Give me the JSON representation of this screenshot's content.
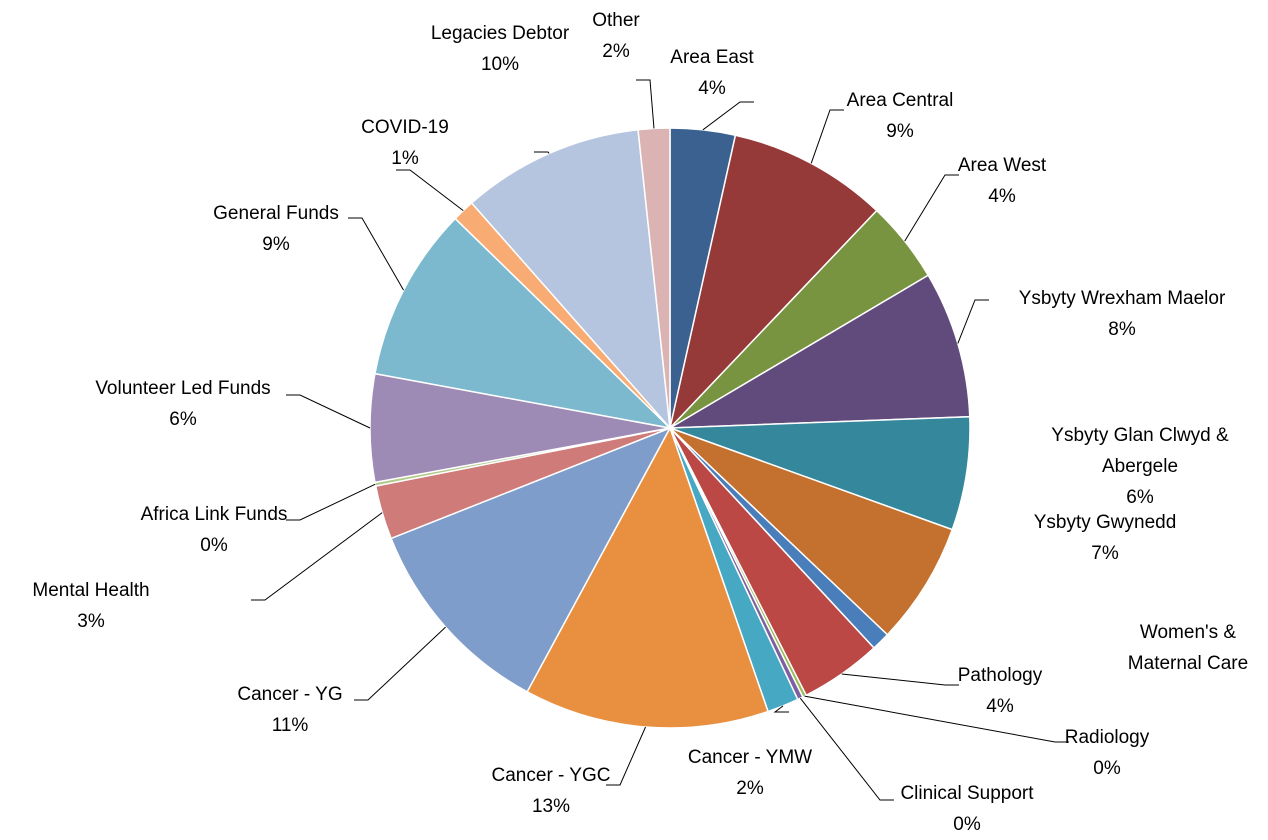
{
  "chart_data": {
    "type": "pie",
    "categories": [
      "Area East",
      "Area Central",
      "Area West",
      "Ysbyty Wrexham Maelor",
      "Ysbyty Glan Clwyd & Abergele",
      "Ysbyty Gwynedd",
      "Women's & Maternal Care",
      "Pathology",
      "Radiology",
      "Clinical Support",
      "Cancer - YMW",
      "Cancer - YGC",
      "Cancer - YG",
      "Mental Health",
      "Africa Link Funds",
      "Volunteer Led Funds",
      "General Funds",
      "COVID-19",
      "Legacies Debtor",
      "Other"
    ],
    "values": [
      3.5,
      8.6,
      4.4,
      7.9,
      6.1,
      6.6,
      1.0,
      4.4,
      0.2,
      0.3,
      1.7,
      13.2,
      11.1,
      2.9,
      0.2,
      5.8,
      9.4,
      1.2,
      9.8,
      1.7
    ],
    "value_labels": [
      "4%",
      "9%",
      "4%",
      "8%",
      "6%",
      "7%",
      null,
      "4%",
      "0%",
      "0%",
      "2%",
      "13%",
      "11%",
      "3%",
      "0%",
      "6%",
      "9%",
      "1%",
      "10%",
      "2%"
    ],
    "colors": [
      "#3b6190",
      "#953a38",
      "#789440",
      "#614b7c",
      "#35879b",
      "#c4712f",
      "#4a7ebb",
      "#bb4845",
      "#98b954",
      "#7d60a0",
      "#46a8c2",
      "#e88f40",
      "#7f9dca",
      "#cf7b7a",
      "#b3c98a",
      "#9d8ab5",
      "#7cb9cf",
      "#f8ab72",
      "#b5c4df",
      "#dbb3b3"
    ]
  }
}
